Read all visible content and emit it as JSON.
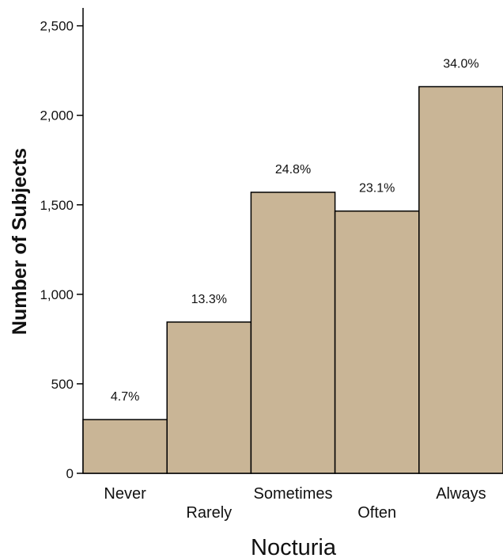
{
  "chart_data": {
    "type": "bar",
    "categories": [
      "Never",
      "Rarely",
      "Sometimes",
      "Often",
      "Always"
    ],
    "values": [
      300,
      845,
      1570,
      1465,
      2160
    ],
    "data_labels": [
      "4.7%",
      "13.3%",
      "24.8%",
      "23.1%",
      "34.0%"
    ],
    "title": "",
    "xlabel": "Nocturia",
    "ylabel": "Number of Subjects",
    "ylim": [
      0,
      2600
    ],
    "yticks": [
      0,
      500,
      1000,
      1500,
      2000,
      2500
    ],
    "ytick_labels": [
      "0",
      "500",
      "1,000",
      "1,500",
      "2,000",
      "2,500"
    ],
    "grid": false,
    "legend": "none",
    "colors": {
      "bar_fill": "#c9b596",
      "bar_stroke": "#000000",
      "axis": "#000000"
    }
  }
}
